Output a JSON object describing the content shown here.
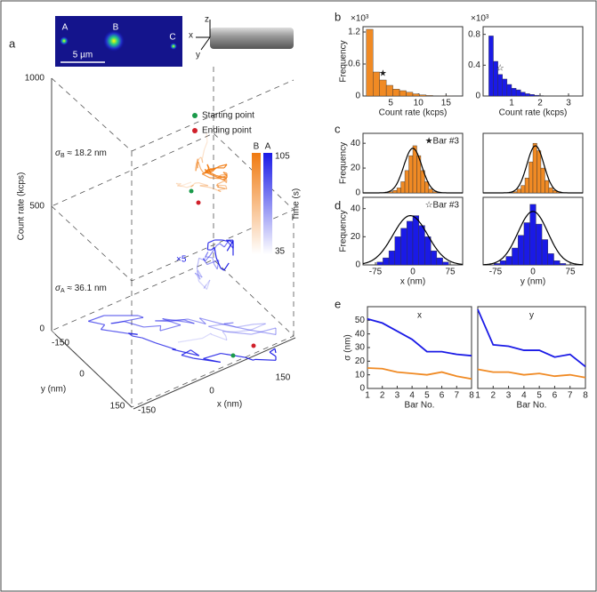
{
  "panel_labels": [
    "a",
    "b",
    "c",
    "d",
    "e"
  ],
  "panel_a": {
    "image_labels": [
      "A",
      "B",
      "C"
    ],
    "scale_bar": "5 µm",
    "axis_labels": [
      "z",
      "x",
      "y"
    ],
    "count_ticks": [
      "1000",
      "500",
      "0"
    ],
    "count_label": "Count rate (kcps)",
    "y_ticks": [
      "-150",
      "0",
      "150"
    ],
    "y_label": "y (nm)",
    "x_ticks": [
      "-150",
      "0",
      "150"
    ],
    "x_label": "x (nm)",
    "sigma_b": {
      "symbol": "σ",
      "sub": "B",
      "text": " ≈ 18.2 nm"
    },
    "sigma_a": {
      "symbol": "σ",
      "sub": "A",
      "text": " ≈ 36.1 nm"
    },
    "scale_factor": "×5",
    "legend": [
      "Starting point",
      "Ending point"
    ],
    "colorbar": {
      "labels": [
        "B",
        "A"
      ],
      "ticks": [
        "105",
        "35"
      ],
      "title": "Time (s)"
    }
  },
  "chart_data": [
    {
      "type": "histogram",
      "color": "#f08a24",
      "bins": [
        0.6,
        1.8,
        3.0,
        4.2,
        5.4,
        6.6,
        7.8,
        9.0,
        10.2,
        11.4,
        12.6,
        13.8,
        15.0,
        16.2
      ],
      "values": [
        1.25,
        0.45,
        0.3,
        0.2,
        0.13,
        0.1,
        0.07,
        0.04,
        0.02,
        0.01,
        0.005,
        0.003,
        0.002
      ],
      "xlim": [
        0,
        18
      ],
      "xticks": [
        5,
        10,
        15
      ],
      "ylim": [
        0,
        1.3
      ],
      "yticks": [
        0,
        0.6,
        1.2
      ],
      "y_multiplier": "×10³",
      "xlabel": "Count rate (kcps)",
      "ylabel": "Frequency",
      "annotation": "★"
    },
    {
      "type": "histogram",
      "color": "#1a1ae6",
      "bins": [
        0.2,
        0.36,
        0.52,
        0.68,
        0.84,
        1.0,
        1.16,
        1.32,
        1.48,
        1.64,
        1.8,
        1.96,
        2.12
      ],
      "values": [
        0.78,
        0.45,
        0.28,
        0.22,
        0.15,
        0.1,
        0.08,
        0.05,
        0.03,
        0.02,
        0.01,
        0.005
      ],
      "xlim": [
        0,
        3.5
      ],
      "xticks": [
        1,
        2,
        3
      ],
      "ylim": [
        0,
        0.9
      ],
      "yticks": [
        0,
        0.4,
        0.8
      ],
      "y_multiplier": "×10³",
      "xlabel": "Count rate (kcps)",
      "annotation": "☆"
    },
    {
      "type": "histogram",
      "color": "#f08a24",
      "bins": [
        -48,
        -40,
        -32,
        -24,
        -16,
        -8,
        0,
        8,
        16,
        24,
        32,
        40,
        48
      ],
      "values": [
        1,
        2,
        4,
        9,
        18,
        30,
        38,
        30,
        18,
        9,
        3,
        1
      ],
      "xlim": [
        -100,
        100
      ],
      "ylim": [
        0,
        48
      ],
      "yticks": [
        0,
        20,
        40
      ],
      "ylabel": "Frequency",
      "annotation": "★Bar #3",
      "fit": {
        "mean": 0,
        "sigma": 18,
        "peak": 36
      }
    },
    {
      "type": "histogram",
      "color": "#f08a24",
      "bins": [
        -40,
        -32,
        -24,
        -16,
        -8,
        0,
        8,
        16,
        24,
        32,
        40,
        48,
        56
      ],
      "values": [
        1,
        3,
        6,
        12,
        25,
        40,
        34,
        20,
        10,
        4,
        2,
        1
      ],
      "xlim": [
        -100,
        100
      ],
      "ylim": [
        0,
        48
      ],
      "fit": {
        "mean": 5,
        "sigma": 17,
        "peak": 38
      }
    },
    {
      "type": "histogram",
      "color": "#1a1ae6",
      "bins": [
        -72,
        -60,
        -48,
        -36,
        -24,
        -12,
        0,
        12,
        24,
        36,
        48,
        60,
        72
      ],
      "values": [
        2,
        5,
        10,
        20,
        26,
        31,
        35,
        28,
        20,
        10,
        5,
        2
      ],
      "xlim": [
        -100,
        100
      ],
      "xticks": [
        -75,
        0,
        75
      ],
      "ylim": [
        0,
        48
      ],
      "yticks": [
        0,
        20,
        40
      ],
      "xlabel": "x (nm)",
      "ylabel": "Frequency",
      "annotation": "☆Bar #3",
      "fit": {
        "mean": -5,
        "sigma": 35,
        "peak": 35
      }
    },
    {
      "type": "histogram",
      "color": "#1a1ae6",
      "bins": [
        -78,
        -66,
        -54,
        -42,
        -30,
        -18,
        -6,
        6,
        18,
        30,
        42,
        54,
        66
      ],
      "values": [
        1,
        3,
        6,
        12,
        21,
        30,
        43,
        29,
        18,
        8,
        3,
        1
      ],
      "xlim": [
        -100,
        100
      ],
      "xticks": [
        -75,
        0,
        75
      ],
      "ylim": [
        0,
        48
      ],
      "xlabel": "y (nm)",
      "fit": {
        "mean": 0,
        "sigma": 30,
        "peak": 38
      }
    },
    {
      "type": "line",
      "title": "x",
      "x": [
        1,
        2,
        3,
        4,
        5,
        6,
        7,
        8
      ],
      "xlim": [
        1,
        8
      ],
      "xticks": [
        1,
        2,
        3,
        4,
        5,
        6,
        7,
        8
      ],
      "ylim": [
        0,
        60
      ],
      "yticks": [
        0,
        10,
        20,
        30,
        40,
        50
      ],
      "xlabel": "Bar No.",
      "ylabel": "σ (nm)",
      "series": [
        {
          "color": "#1a1ae6",
          "values": [
            51,
            48,
            42,
            36,
            27,
            27,
            25,
            24
          ]
        },
        {
          "color": "#f08a24",
          "values": [
            15,
            14.5,
            12,
            11,
            10,
            12,
            9,
            7
          ]
        }
      ]
    },
    {
      "type": "line",
      "title": "y",
      "x": [
        1,
        2,
        3,
        4,
        5,
        6,
        7,
        8
      ],
      "xlim": [
        1,
        8
      ],
      "xticks": [
        1,
        2,
        3,
        4,
        5,
        6,
        7,
        8
      ],
      "ylim": [
        0,
        60
      ],
      "xlabel": "Bar No.",
      "series": [
        {
          "color": "#1a1ae6",
          "values": [
            58,
            32,
            31,
            28,
            28,
            23,
            25,
            16
          ]
        },
        {
          "color": "#f08a24",
          "values": [
            14,
            12,
            12,
            10,
            11,
            9,
            10,
            8
          ]
        }
      ]
    }
  ]
}
